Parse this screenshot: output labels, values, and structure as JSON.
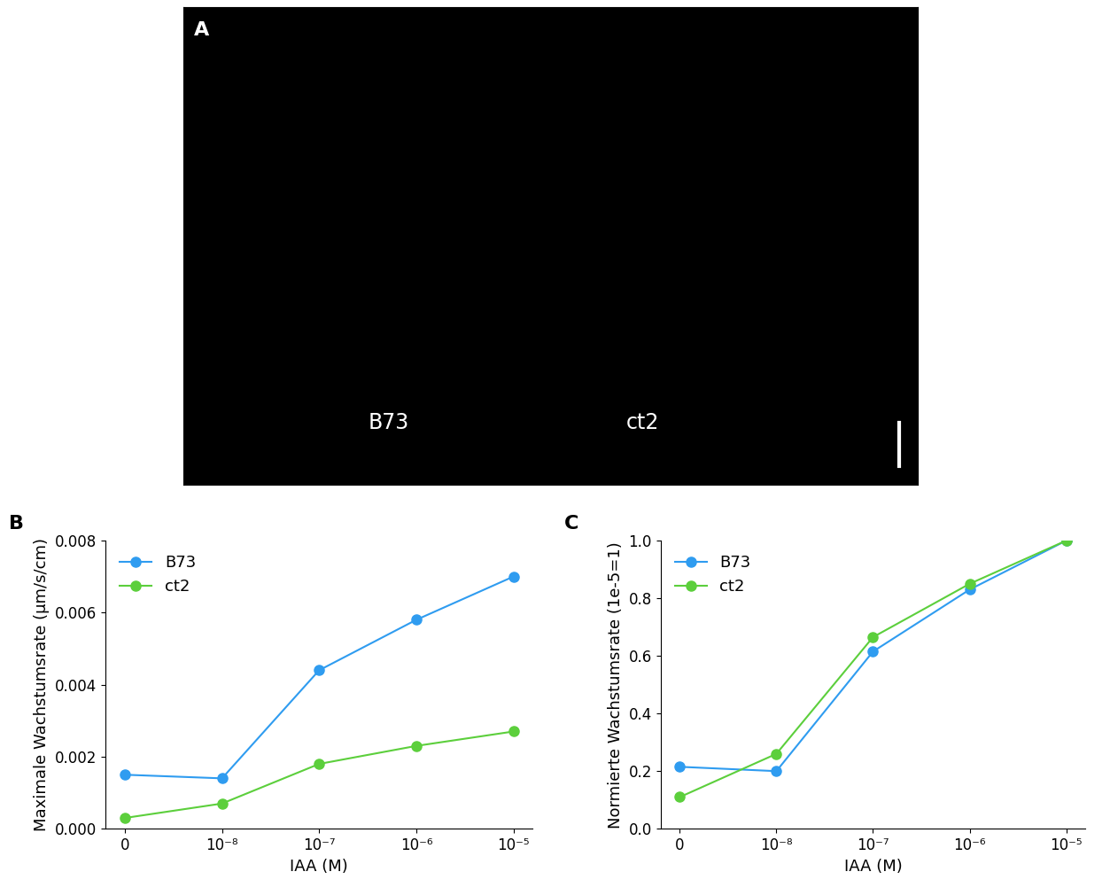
{
  "photo": {
    "panel": "A",
    "labels": [
      "B73",
      "ct2"
    ]
  },
  "chart_data": [
    {
      "type": "line",
      "panel": "B",
      "x_label": "IAA (M)",
      "y_label": "Maximale Wachstumsrate (µm/s/cm)",
      "categories": [
        "0",
        "10⁻⁸",
        "10⁻⁷",
        "10⁻⁶",
        "10⁻⁵"
      ],
      "series": [
        {
          "name": "B73",
          "color": "#2f9cf0",
          "marker": "o",
          "values": [
            0.0015,
            0.0014,
            0.0044,
            0.0058,
            0.007
          ]
        },
        {
          "name": "ct2",
          "color": "#5ccf3c",
          "marker": "o",
          "values": [
            0.0003,
            0.0007,
            0.0018,
            0.0023,
            0.0027
          ]
        }
      ],
      "ylim": [
        0,
        0.008
      ],
      "yticks": [
        {
          "value": 0,
          "label": "0.000"
        },
        0.002,
        0.004,
        0.006,
        0.008
      ],
      "legend": "upper left",
      "grid": false
    },
    {
      "type": "line",
      "panel": "C",
      "x_label": "IAA (M)",
      "y_label": "Normierte Wachstumsrate (1e-5=1)",
      "categories": [
        "0",
        "10⁻⁸",
        "10⁻⁷",
        "10⁻⁶",
        "10⁻⁵"
      ],
      "series": [
        {
          "name": "B73",
          "color": "#2f9cf0",
          "marker": "o",
          "values": [
            0.215,
            0.2,
            0.615,
            0.83,
            1.0
          ]
        },
        {
          "name": "ct2",
          "color": "#5ccf3c",
          "marker": "o",
          "values": [
            0.11,
            0.26,
            0.665,
            0.85,
            1.0
          ]
        }
      ],
      "ylim": [
        0.0,
        1.0
      ],
      "yticks": [
        0.0,
        0.2,
        0.4,
        0.6,
        0.8,
        1.0
      ],
      "legend": "upper left",
      "grid": false
    }
  ]
}
